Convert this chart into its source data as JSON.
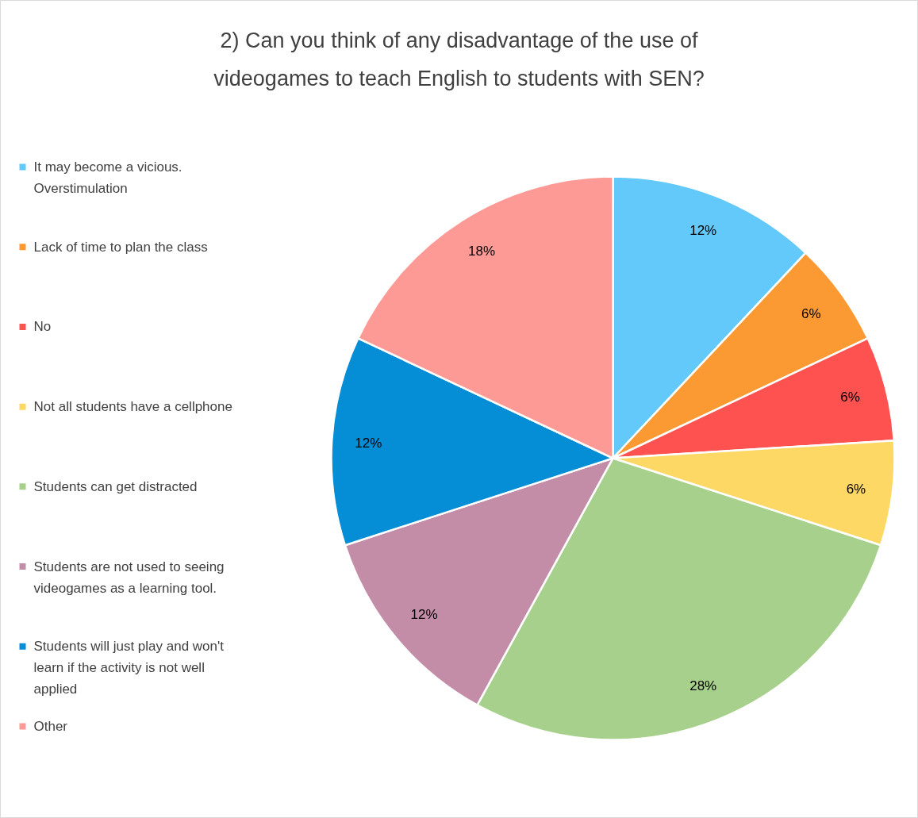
{
  "chart_data": {
    "type": "pie",
    "title": "2) Can you think of any disadvantage of the use of videogames to teach English to students with SEN?",
    "categories": [
      "It may become a vicious. Overstimulation",
      "Lack of time to plan the class",
      "No",
      "Not all students have a cellphone",
      "Students can get distracted",
      "Students are not used to seeing videogames as a learning tool.",
      "Students will just play and won't learn if the activity is not well applied",
      "Other"
    ],
    "values": [
      12,
      6,
      6,
      6,
      28,
      12,
      12,
      18
    ],
    "value_labels": [
      "12%",
      "6%",
      "6%",
      "6%",
      "28%",
      "12%",
      "12%",
      "18%"
    ],
    "colors": [
      "#63c8fa",
      "#fb9a32",
      "#fe5250",
      "#fdd865",
      "#a7d08c",
      "#c38da8",
      "#058dd6",
      "#fe9a96"
    ],
    "legend": "left"
  }
}
